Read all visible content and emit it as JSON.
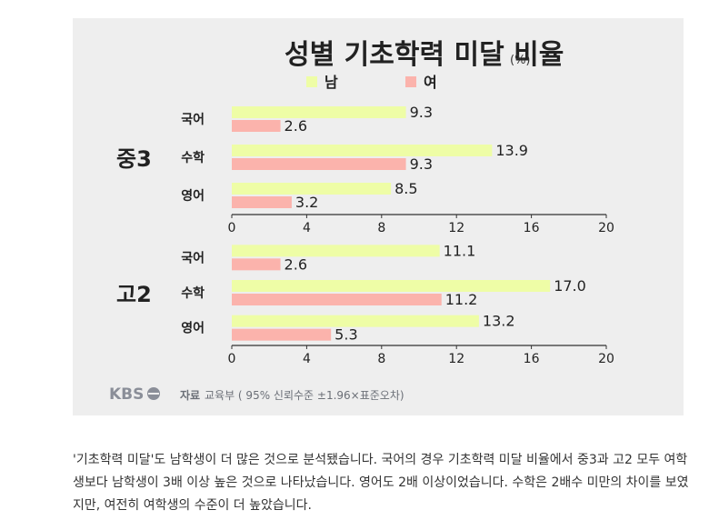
{
  "title": "성별 기초학력 미달 비율",
  "unit": "(%)",
  "legend": [
    {
      "label": "남",
      "color": "#eefda6"
    },
    {
      "label": "여",
      "color": "#fbb3ac"
    }
  ],
  "chart_data": [
    {
      "type": "bar",
      "orientation": "horizontal",
      "group_label": "중3",
      "categories": [
        "국어",
        "수학",
        "영어"
      ],
      "series": [
        {
          "name": "남",
          "values": [
            9.3,
            13.9,
            8.5
          ]
        },
        {
          "name": "여",
          "values": [
            2.6,
            9.3,
            3.2
          ]
        }
      ],
      "xlim": [
        0,
        20
      ],
      "xticks": [
        0,
        4,
        8,
        12,
        16,
        20
      ]
    },
    {
      "type": "bar",
      "orientation": "horizontal",
      "group_label": "고2",
      "categories": [
        "국어",
        "수학",
        "영어"
      ],
      "series": [
        {
          "name": "남",
          "values": [
            11.1,
            17.0,
            13.2
          ]
        },
        {
          "name": "여",
          "values": [
            2.6,
            11.2,
            5.3
          ]
        }
      ],
      "xlim": [
        0,
        20
      ],
      "xticks": [
        0,
        4,
        8,
        12,
        16,
        20
      ]
    }
  ],
  "logo": "KBS",
  "source": {
    "label": "자료",
    "text": "교육부 ( 95% 신뢰수준 ±1.96×표준오차)"
  },
  "article": "'기초학력 미달'도 남학생이 더 많은 것으로 분석됐습니다. 국어의 경우 기초학력 미달 비율에서 중3과 고2 모두 여학생보다 남학생이 3배 이상 높은 것으로 나타났습니다. 영어도 2배 이상이었습니다. 수학은 2배수 미만의 차이를 보였지만, 여전히 여학생의 수준이 더 높았습니다."
}
